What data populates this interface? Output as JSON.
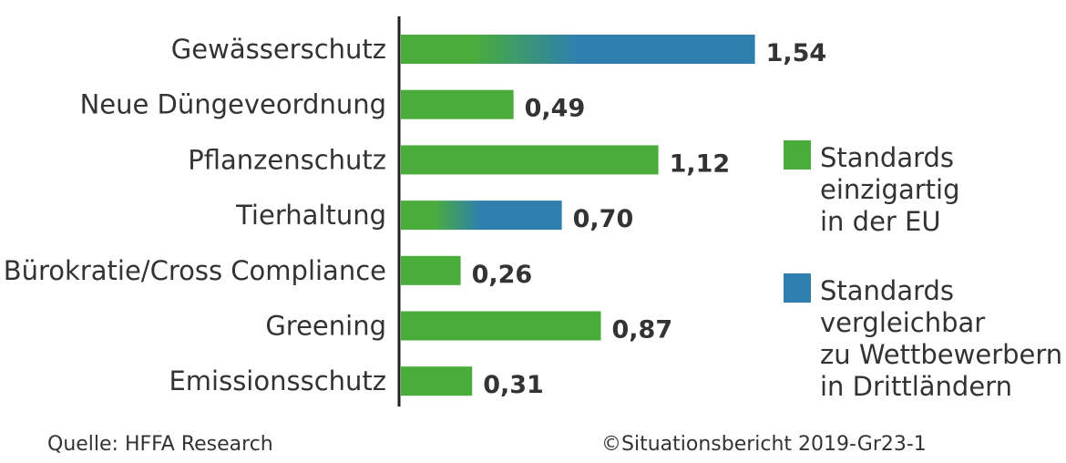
{
  "chart_data": {
    "type": "bar",
    "orientation": "horizontal",
    "categories": [
      "Gewässerschutz",
      "Neue Düngeveordnung",
      "Pflanzenschutz",
      "Tierhaltung",
      "Bürokratie/Cross Compliance",
      "Greening",
      "Emissionsschutz"
    ],
    "values": [
      1.54,
      0.49,
      1.12,
      0.7,
      0.26,
      0.87,
      0.31
    ],
    "value_labels": [
      "1,54",
      "0,49",
      "1,12",
      "0,70",
      "0,26",
      "0,87",
      "0,31"
    ],
    "bar_style": [
      "gradient",
      "solid",
      "solid",
      "gradient",
      "solid",
      "solid",
      "solid"
    ],
    "xlim": [
      0,
      1.72
    ],
    "grid": false,
    "legend_position": "right",
    "legend": [
      {
        "key": "solid",
        "lines": [
          "Standards",
          "einzigartig",
          "in der EU"
        ],
        "color": "#4aad3b"
      },
      {
        "key": "gradient",
        "lines": [
          "Standards",
          "vergleichbar",
          "zu Wettbewerbern",
          "in Drittländern"
        ],
        "color": "#2e7fae"
      }
    ]
  },
  "colors": {
    "green": "#4aad3b",
    "blue": "#2e7fae",
    "text": "#333333",
    "axis": "#222222"
  },
  "footer": {
    "source": "Quelle: HFFA Research",
    "copyright": "©Situationsbericht 2019-Gr23-1"
  }
}
